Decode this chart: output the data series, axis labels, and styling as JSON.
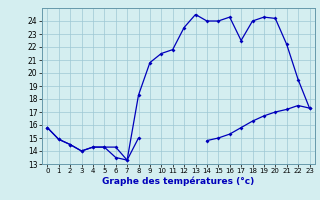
{
  "xlabel": "Graphe des températures (°c)",
  "xlim": [
    -0.5,
    23.5
  ],
  "ylim": [
    13,
    25
  ],
  "yticks": [
    13,
    14,
    15,
    16,
    17,
    18,
    19,
    20,
    21,
    22,
    23,
    24
  ],
  "xticks": [
    0,
    1,
    2,
    3,
    4,
    5,
    6,
    7,
    8,
    9,
    10,
    11,
    12,
    13,
    14,
    15,
    16,
    17,
    18,
    19,
    20,
    21,
    22,
    23
  ],
  "bg_color": "#d4eef0",
  "grid_color": "#9ec8d4",
  "line_color": "#0000bb",
  "line1_y": [
    15.8,
    14.9,
    14.5,
    14.0,
    14.3,
    14.3,
    14.3,
    13.3,
    15.0,
    null,
    null,
    null,
    null,
    null,
    null,
    null,
    null,
    null,
    null,
    null,
    null,
    null,
    null,
    null
  ],
  "line2_y": [
    15.8,
    14.9,
    14.5,
    14.0,
    14.3,
    14.3,
    13.5,
    13.3,
    18.3,
    20.8,
    21.5,
    21.8,
    23.5,
    24.5,
    24.0,
    24.0,
    24.3,
    22.5,
    24.0,
    24.3,
    24.2,
    22.2,
    19.5,
    17.3
  ],
  "line3_y": [
    null,
    null,
    null,
    null,
    null,
    null,
    null,
    null,
    null,
    null,
    null,
    null,
    null,
    null,
    14.8,
    15.0,
    15.3,
    15.8,
    16.3,
    16.7,
    17.0,
    17.2,
    17.5,
    17.3
  ]
}
